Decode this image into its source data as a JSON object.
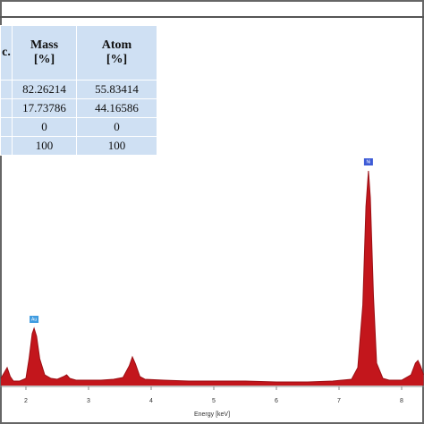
{
  "chart_data": {
    "type": "line",
    "xlabel": "Energy [keV]",
    "xlim": [
      1.586,
      8.357
    ],
    "xticks": [
      2,
      3,
      4,
      5,
      6,
      7,
      8
    ],
    "x": [
      1.6,
      1.65,
      1.7,
      1.75,
      1.8,
      1.9,
      2.0,
      2.05,
      2.1,
      2.13,
      2.17,
      2.22,
      2.3,
      2.4,
      2.5,
      2.6,
      2.65,
      2.7,
      2.8,
      3.0,
      3.2,
      3.4,
      3.55,
      3.65,
      3.7,
      3.75,
      3.82,
      3.9,
      4.2,
      4.6,
      5.0,
      5.5,
      6.0,
      6.5,
      6.9,
      7.2,
      7.3,
      7.38,
      7.43,
      7.47,
      7.5,
      7.55,
      7.6,
      7.7,
      7.8,
      8.0,
      8.15,
      8.22,
      8.26,
      8.3,
      8.35
    ],
    "series": [
      {
        "color": "#c3161c",
        "values": [
          8,
          14,
          20,
          10,
          5,
          5,
          8,
          30,
          58,
          64,
          55,
          30,
          12,
          8,
          7,
          10,
          12,
          8,
          6,
          6,
          6,
          7,
          9,
          22,
          32,
          24,
          10,
          7,
          6,
          5,
          5,
          5,
          4,
          4,
          5,
          7,
          20,
          90,
          200,
          240,
          210,
          100,
          25,
          8,
          6,
          6,
          12,
          25,
          28,
          22,
          12
        ]
      }
    ],
    "annotations": [
      {
        "text": "Au",
        "x": 2.13
      },
      {
        "text": "Ni",
        "x": 7.47
      }
    ]
  },
  "table": {
    "header": [
      "c.",
      "Mass\n[%]",
      "Atom\n[%]"
    ],
    "rows": [
      [
        "82.26214",
        "55.83414"
      ],
      [
        "17.73786",
        "44.16586"
      ],
      [
        "0",
        "0"
      ],
      [
        "100",
        "100"
      ]
    ]
  }
}
